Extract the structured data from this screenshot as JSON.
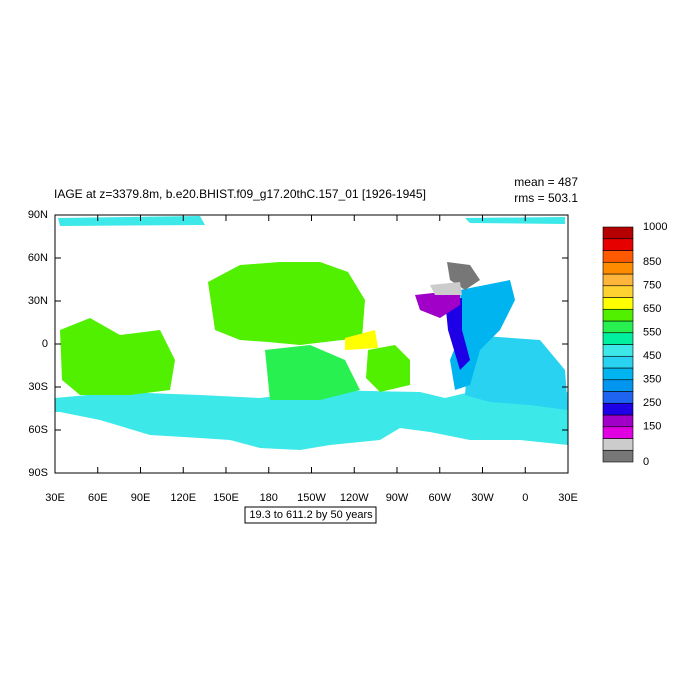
{
  "title": "IAGE at z=3379.8m, b.e20.BHIST.f09_g17.20thC.157_01 [1926-1945]",
  "stats": [
    "mean = 487",
    "rms = 503.1"
  ],
  "x_axis": {
    "labels": [
      "30E",
      "60E",
      "90E",
      "120E",
      "150E",
      "180",
      "150W",
      "120W",
      "90W",
      "60W",
      "30W",
      "0",
      "30E"
    ]
  },
  "y_axis": {
    "labels": [
      "90N",
      "60N",
      "30N",
      "0",
      "30S",
      "60S",
      "90S"
    ]
  },
  "annotation": "19.3 to 611.2 by 50 years",
  "colorbar": {
    "clim": [
      0,
      1000
    ],
    "colors": [
      "#777777",
      "#cccccc",
      "#e100e1",
      "#a000c8",
      "#1e00e6",
      "#1e64f0",
      "#0096f0",
      "#00b4f0",
      "#28d2f0",
      "#3ce8e8",
      "#00f0a0",
      "#28f050",
      "#50f000",
      "#ffff00",
      "#ffd232",
      "#ffb43c",
      "#ff8c00",
      "#ff5a00",
      "#e60000",
      "#b40000"
    ],
    "ticks": [
      0,
      150,
      250,
      350,
      450,
      550,
      650,
      750,
      850,
      1000
    ]
  }
}
